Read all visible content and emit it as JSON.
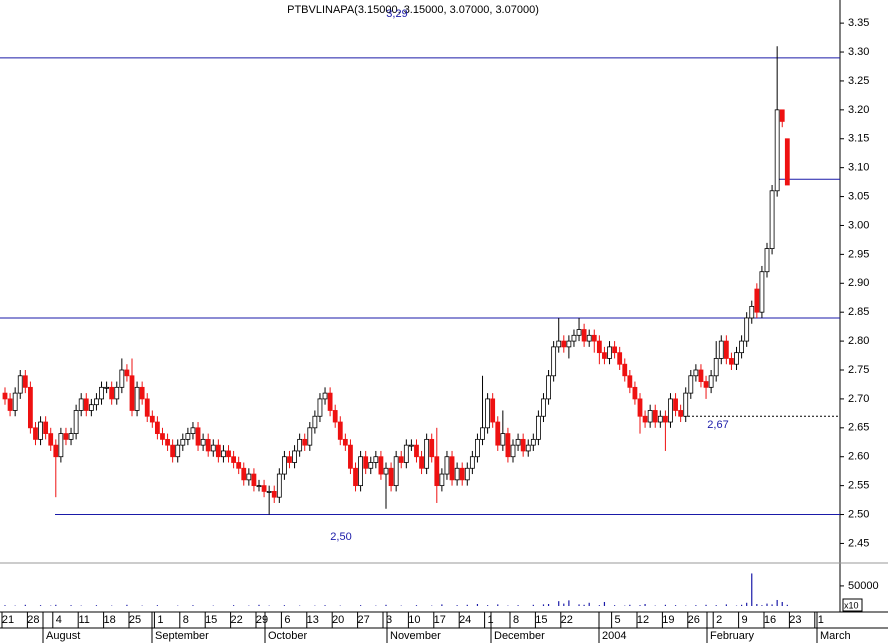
{
  "chart_data": {
    "type": "candlestick",
    "title": "PTBVLINAPA(3.15000, 3.15000, 3.07000, 3.07000)",
    "categories": [
      "21",
      null,
      null,
      null,
      null,
      "28",
      null,
      null,
      null,
      null,
      "4",
      null,
      null,
      null,
      null,
      "11",
      null,
      null,
      null,
      null,
      "18",
      null,
      null,
      null,
      null,
      "25",
      null,
      null,
      null,
      null,
      "1",
      null,
      null,
      null,
      null,
      "8",
      null,
      null,
      null,
      null,
      "15",
      null,
      null,
      null,
      null,
      "22",
      null,
      null,
      null,
      null,
      "29",
      null,
      null,
      null,
      null,
      "6",
      null,
      null,
      null,
      null,
      "13",
      null,
      null,
      null,
      null,
      "20",
      null,
      null,
      null,
      null,
      "27",
      null,
      null,
      null,
      null,
      "3",
      null,
      null,
      null,
      null,
      "10",
      null,
      null,
      null,
      null,
      "17",
      null,
      null,
      null,
      null,
      "24",
      null,
      null,
      null,
      null,
      "1",
      null,
      null,
      null,
      null,
      "8",
      null,
      null,
      null,
      null,
      "15",
      null,
      null,
      null,
      null,
      "22",
      null,
      null,
      null,
      null,
      null,
      null,
      null,
      null,
      null,
      "5",
      null,
      null,
      null,
      null,
      "12",
      null,
      null,
      null,
      null,
      "19",
      null,
      null,
      null,
      null,
      "26",
      null,
      null,
      null,
      null,
      "2",
      null,
      null,
      null,
      null,
      "9",
      null,
      null,
      null,
      null,
      "16",
      null,
      null,
      null,
      null,
      "23",
      null,
      null,
      null,
      null,
      "1",
      null,
      null
    ],
    "months": [
      "August",
      "September",
      "October",
      "November",
      "December",
      "2004",
      "February",
      "March"
    ],
    "open": [
      2.71,
      2.7,
      2.68,
      2.71,
      2.74,
      2.72,
      2.65,
      2.63,
      2.66,
      2.64,
      2.62,
      2.6,
      2.64,
      2.63,
      2.64,
      2.68,
      2.7,
      2.68,
      2.69,
      2.7,
      2.72,
      2.72,
      2.7,
      2.72,
      2.75,
      2.74,
      2.68,
      2.72,
      2.7,
      2.67,
      2.66,
      2.64,
      2.63,
      2.62,
      2.6,
      2.62,
      2.63,
      2.64,
      2.65,
      2.62,
      2.63,
      2.61,
      2.62,
      2.6,
      2.61,
      2.6,
      2.59,
      2.58,
      2.56,
      2.57,
      2.55,
      2.55,
      2.54,
      2.54,
      2.53,
      2.57,
      2.6,
      2.59,
      2.61,
      2.63,
      2.62,
      2.65,
      2.67,
      2.7,
      2.71,
      2.68,
      2.66,
      2.63,
      2.62,
      2.58,
      2.55,
      2.6,
      2.58,
      2.59,
      2.6,
      2.57,
      2.58,
      2.55,
      2.6,
      2.59,
      2.62,
      2.62,
      2.6,
      2.58,
      2.63,
      2.6,
      2.55,
      2.57,
      2.6,
      2.56,
      2.58,
      2.56,
      2.58,
      2.6,
      2.63,
      2.65,
      2.7,
      2.66,
      2.62,
      2.64,
      2.6,
      2.62,
      2.63,
      2.61,
      2.62,
      2.63,
      2.67,
      2.7,
      2.74,
      2.79,
      2.8,
      2.79,
      2.8,
      2.81,
      2.82,
      2.8,
      2.81,
      2.8,
      2.78,
      2.77,
      2.79,
      2.78,
      2.76,
      2.74,
      2.72,
      2.7,
      2.67,
      2.66,
      2.68,
      2.66,
      2.67,
      2.66,
      2.7,
      2.68,
      2.67,
      2.71,
      2.74,
      2.75,
      2.73,
      2.72,
      2.74,
      2.77,
      2.8,
      2.77,
      2.76,
      2.78,
      2.8,
      2.84,
      2.89,
      2.85,
      2.92,
      2.96,
      3.06,
      3.2,
      3.15,
      null,
      null,
      null,
      null,
      null,
      null,
      null,
      null
    ],
    "high": [
      2.72,
      2.71,
      2.72,
      2.75,
      2.75,
      2.73,
      2.66,
      2.67,
      2.67,
      2.65,
      2.63,
      2.65,
      2.65,
      2.65,
      2.69,
      2.71,
      2.71,
      2.7,
      2.71,
      2.73,
      2.73,
      2.73,
      2.73,
      2.77,
      2.76,
      2.77,
      2.73,
      2.73,
      2.71,
      2.68,
      2.67,
      2.65,
      2.64,
      2.63,
      2.63,
      2.64,
      2.65,
      2.66,
      2.66,
      2.64,
      2.64,
      2.63,
      2.63,
      2.62,
      2.62,
      2.61,
      2.6,
      2.59,
      2.58,
      2.58,
      2.56,
      2.56,
      2.55,
      2.55,
      2.58,
      2.61,
      2.61,
      2.62,
      2.64,
      2.64,
      2.66,
      2.68,
      2.71,
      2.72,
      2.72,
      2.69,
      2.67,
      2.64,
      2.63,
      2.59,
      2.61,
      2.61,
      2.6,
      2.61,
      2.61,
      2.59,
      2.59,
      2.61,
      2.61,
      2.63,
      2.63,
      2.63,
      2.61,
      2.64,
      2.64,
      2.65,
      2.58,
      2.61,
      2.61,
      2.59,
      2.59,
      2.59,
      2.61,
      2.64,
      2.74,
      2.71,
      2.71,
      2.67,
      2.68,
      2.65,
      2.63,
      2.64,
      2.64,
      2.63,
      2.64,
      2.68,
      2.71,
      2.75,
      2.8,
      2.84,
      2.81,
      2.81,
      2.82,
      2.84,
      2.83,
      2.82,
      2.82,
      2.81,
      2.79,
      2.8,
      2.8,
      2.79,
      2.77,
      2.75,
      2.73,
      2.71,
      2.68,
      2.69,
      2.69,
      2.68,
      2.68,
      2.71,
      2.71,
      2.69,
      2.72,
      2.75,
      2.76,
      2.76,
      2.74,
      2.75,
      2.8,
      2.81,
      2.81,
      2.78,
      2.79,
      2.81,
      2.85,
      2.87,
      2.9,
      2.93,
      2.97,
      3.07,
      3.31,
      3.2,
      3.15,
      null,
      null,
      null,
      null,
      null,
      null,
      null,
      null
    ],
    "low": [
      2.69,
      2.67,
      2.67,
      2.7,
      2.71,
      2.64,
      2.62,
      2.62,
      2.63,
      2.61,
      2.53,
      2.59,
      2.62,
      2.62,
      2.63,
      2.67,
      2.67,
      2.67,
      2.68,
      2.69,
      2.71,
      2.69,
      2.69,
      2.71,
      2.73,
      2.67,
      2.67,
      2.69,
      2.66,
      2.65,
      2.63,
      2.62,
      2.61,
      2.59,
      2.59,
      2.61,
      2.62,
      2.63,
      2.61,
      2.61,
      2.6,
      2.6,
      2.59,
      2.59,
      2.59,
      2.58,
      2.57,
      2.55,
      2.55,
      2.54,
      2.54,
      2.53,
      2.5,
      2.52,
      2.52,
      2.56,
      2.58,
      2.58,
      2.6,
      2.61,
      2.61,
      2.64,
      2.66,
      2.69,
      2.67,
      2.65,
      2.62,
      2.61,
      2.57,
      2.54,
      2.54,
      2.57,
      2.57,
      2.58,
      2.56,
      2.51,
      2.54,
      2.54,
      2.58,
      2.58,
      2.61,
      2.59,
      2.57,
      2.57,
      2.59,
      2.52,
      2.54,
      2.56,
      2.55,
      2.55,
      2.55,
      2.55,
      2.57,
      2.59,
      2.62,
      2.64,
      2.65,
      2.61,
      2.61,
      2.59,
      2.59,
      2.61,
      2.6,
      2.6,
      2.61,
      2.62,
      2.66,
      2.69,
      2.73,
      2.78,
      2.78,
      2.77,
      2.79,
      2.8,
      2.79,
      2.79,
      2.78,
      2.76,
      2.76,
      2.76,
      2.77,
      2.75,
      2.73,
      2.71,
      2.69,
      2.64,
      2.65,
      2.65,
      2.65,
      2.65,
      2.61,
      2.65,
      2.67,
      2.66,
      2.66,
      2.7,
      2.73,
      2.72,
      2.7,
      2.71,
      2.73,
      2.76,
      2.76,
      2.75,
      2.75,
      2.77,
      2.79,
      2.83,
      2.84,
      2.84,
      2.91,
      2.95,
      3.05,
      3.17,
      3.07,
      null,
      null,
      null,
      null,
      null,
      null,
      null,
      null
    ],
    "close": [
      2.7,
      2.68,
      2.71,
      2.74,
      2.72,
      2.65,
      2.63,
      2.66,
      2.64,
      2.62,
      2.6,
      2.64,
      2.63,
      2.64,
      2.68,
      2.7,
      2.68,
      2.69,
      2.7,
      2.72,
      2.72,
      2.7,
      2.72,
      2.75,
      2.74,
      2.68,
      2.72,
      2.7,
      2.67,
      2.66,
      2.64,
      2.63,
      2.62,
      2.6,
      2.62,
      2.63,
      2.64,
      2.65,
      2.62,
      2.63,
      2.61,
      2.62,
      2.6,
      2.61,
      2.6,
      2.59,
      2.58,
      2.56,
      2.57,
      2.55,
      2.55,
      2.54,
      2.54,
      2.53,
      2.57,
      2.6,
      2.59,
      2.61,
      2.63,
      2.62,
      2.65,
      2.67,
      2.7,
      2.71,
      2.68,
      2.66,
      2.63,
      2.62,
      2.58,
      2.55,
      2.6,
      2.58,
      2.59,
      2.6,
      2.57,
      2.58,
      2.55,
      2.6,
      2.59,
      2.62,
      2.62,
      2.6,
      2.58,
      2.63,
      2.6,
      2.55,
      2.57,
      2.6,
      2.56,
      2.58,
      2.56,
      2.58,
      2.6,
      2.63,
      2.65,
      2.7,
      2.66,
      2.62,
      2.64,
      2.6,
      2.62,
      2.63,
      2.61,
      2.62,
      2.63,
      2.67,
      2.7,
      2.74,
      2.79,
      2.8,
      2.79,
      2.8,
      2.81,
      2.82,
      2.8,
      2.81,
      2.8,
      2.78,
      2.77,
      2.79,
      2.78,
      2.76,
      2.74,
      2.72,
      2.7,
      2.67,
      2.66,
      2.68,
      2.66,
      2.67,
      2.66,
      2.7,
      2.68,
      2.67,
      2.71,
      2.74,
      2.75,
      2.73,
      2.72,
      2.74,
      2.77,
      2.8,
      2.77,
      2.76,
      2.78,
      2.8,
      2.84,
      2.86,
      2.85,
      2.92,
      2.96,
      3.06,
      3.2,
      3.18,
      3.07,
      null,
      null,
      null,
      null,
      null,
      null,
      null,
      null
    ],
    "volume": [
      2000,
      0,
      1000,
      0,
      3000,
      0,
      0,
      2000,
      0,
      1000,
      3000,
      0,
      0,
      2000,
      0,
      1000,
      0,
      0,
      2000,
      0,
      0,
      1000,
      0,
      0,
      3000,
      0,
      0,
      1000,
      0,
      0,
      2000,
      0,
      0,
      0,
      1000,
      0,
      0,
      2000,
      0,
      0,
      0,
      1000,
      0,
      0,
      0,
      2000,
      0,
      0,
      1000,
      0,
      3000,
      0,
      1000,
      0,
      0,
      2000,
      0,
      0,
      1000,
      0,
      0,
      1000,
      0,
      2000,
      0,
      0,
      1000,
      0,
      0,
      0,
      2000,
      0,
      0,
      1000,
      0,
      3000,
      0,
      0,
      1000,
      0,
      0,
      2000,
      0,
      0,
      1000,
      0,
      4000,
      0,
      0,
      2000,
      0,
      3000,
      0,
      5000,
      0,
      2000,
      0,
      4000,
      0,
      1000,
      0,
      2000,
      0,
      0,
      3000,
      0,
      4000,
      5000,
      0,
      12000,
      6000,
      14000,
      0,
      4000,
      3000,
      8000,
      0,
      2000,
      10000,
      0,
      2000,
      0,
      1000,
      3000,
      0,
      2000,
      5000,
      0,
      1000,
      0,
      3000,
      0,
      2000,
      0,
      1000,
      0,
      2000,
      0,
      3000,
      0,
      2000,
      0,
      4000,
      0,
      1000,
      3000,
      8000,
      81000,
      5000,
      2000,
      6000,
      4000,
      15000,
      10000,
      3000,
      null,
      null,
      null,
      null,
      null,
      null,
      null,
      null
    ],
    "up_color": "#ffffff",
    "down_color": "#ee1111",
    "volume_color": "#1a1aa8",
    "line_color": "#1a1aa8",
    "ylim": [
      2.43,
      3.39
    ],
    "yticks": [
      2.45,
      {
        "value": 2.5,
        "label": "2.50"
      },
      2.55,
      {
        "value": 2.6,
        "label": "2.60"
      },
      2.65,
      {
        "value": 2.7,
        "label": "2.70"
      },
      2.75,
      {
        "value": 2.8,
        "label": "2.80"
      },
      2.85,
      {
        "value": 2.9,
        "label": "2.90"
      },
      2.95,
      {
        "value": 3,
        "label": "3.00"
      },
      3.05,
      {
        "value": 3.1,
        "label": "3.10"
      },
      3.15,
      {
        "value": 3.2,
        "label": "3.20"
      },
      3.25,
      {
        "value": 3.3,
        "label": "3.30"
      },
      3.35
    ],
    "volume_lim": [
      0,
      107000
    ],
    "volume_ticks": [
      50000
    ],
    "volume_unit_label": "x10",
    "hlines": [
      {
        "value": 3.29,
        "label": "3,29"
      },
      {
        "value": 2.84
      },
      {
        "value": 2.5,
        "label": "2,50"
      },
      {
        "value": 2.67,
        "label": "2,67",
        "style": "dashed"
      },
      {
        "value": 3.08
      }
    ]
  }
}
